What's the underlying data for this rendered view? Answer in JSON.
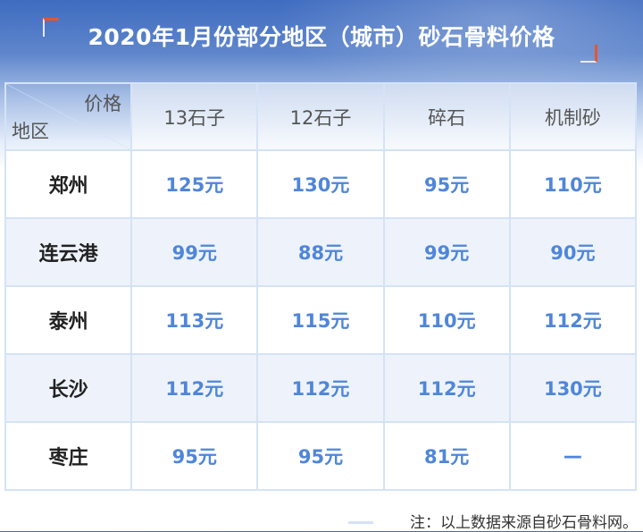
{
  "title": "2020年1月份部分地区（城市）砂石骨料价格",
  "table": {
    "corner_top": "价格",
    "corner_bottom": "地区",
    "columns": [
      "13石子",
      "12石子",
      "碎石",
      "机制砂"
    ],
    "rows": [
      {
        "city": "郑州",
        "prices": [
          "125元",
          "130元",
          "95元",
          "110元"
        ]
      },
      {
        "city": "连云港",
        "prices": [
          "99元",
          "88元",
          "99元",
          "90元"
        ]
      },
      {
        "city": "泰州",
        "prices": [
          "113元",
          "115元",
          "110元",
          "112元"
        ]
      },
      {
        "city": "长沙",
        "prices": [
          "112元",
          "112元",
          "112元",
          "130元"
        ]
      },
      {
        "city": "枣庄",
        "prices": [
          "95元",
          "95元",
          "81元",
          "—"
        ]
      }
    ]
  },
  "note": "注：以上数据来源自砂石骨料网。",
  "colors": {
    "accent": "#4f86d9",
    "bracket": "#e5562f",
    "grid": "#d4e3f6"
  }
}
